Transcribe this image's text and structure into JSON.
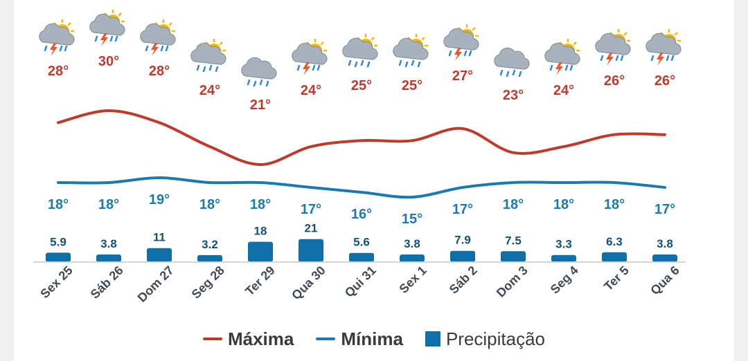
{
  "chart_data": {
    "type": "line",
    "categories": [
      "Sex 25",
      "Sáb 26",
      "Dom 27",
      "Seg 28",
      "Ter 29",
      "Qua 30",
      "Qui 31",
      "Sex 1",
      "Sáb 2",
      "Dom 3",
      "Seg 4",
      "Ter 5",
      "Qua 6"
    ],
    "series": [
      {
        "name": "Máxima",
        "type": "line",
        "color": "#c0392b",
        "values": [
          28,
          30,
          28,
          24,
          21,
          24,
          25,
          25,
          27,
          23,
          24,
          26,
          26
        ],
        "labels": [
          "28°",
          "30°",
          "28°",
          "24°",
          "21°",
          "24°",
          "25°",
          "25°",
          "27°",
          "23°",
          "24°",
          "26°",
          "26°"
        ]
      },
      {
        "name": "Mínima",
        "type": "line",
        "color": "#1a7ab0",
        "values": [
          18,
          18,
          19,
          18,
          18,
          17,
          16,
          15,
          17,
          18,
          18,
          18,
          17
        ],
        "labels": [
          "18°",
          "18°",
          "19°",
          "18°",
          "18°",
          "17°",
          "16°",
          "15°",
          "17°",
          "18°",
          "18°",
          "18°",
          "17°"
        ]
      },
      {
        "name": "Precipitação",
        "type": "bar",
        "color": "#0f6fa8",
        "values": [
          5.9,
          3.8,
          11,
          3.2,
          18,
          21,
          5.6,
          3.8,
          7.9,
          7.5,
          3.3,
          6.3,
          3.8
        ],
        "labels": [
          "5.9",
          "3.8",
          "11",
          "3.2",
          "18",
          "21",
          "5.6",
          "3.8",
          "7.9",
          "7.5",
          "3.3",
          "6.3",
          "3.8"
        ]
      }
    ],
    "icons": [
      "storm-sun-icon",
      "storm-sun-icon",
      "storm-sun-icon",
      "rain-sun-icon",
      "rain-cloud-icon",
      "storm-sun-icon",
      "rain-sun-icon",
      "rain-sun-icon",
      "storm-sun-icon",
      "rain-cloud-icon",
      "storm-sun-icon",
      "storm-sun-icon",
      "storm-sun-icon"
    ],
    "grid": false,
    "legend_position": "bottom-center"
  }
}
